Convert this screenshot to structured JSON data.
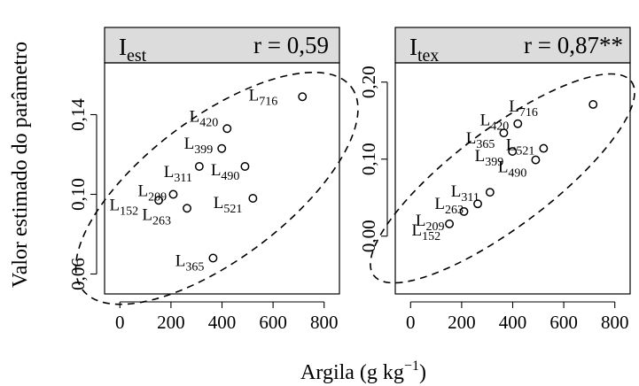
{
  "figure": {
    "ylabel": "Valor estimado do parâmetro",
    "xlabel_main": "Argila (g kg",
    "xlabel_sup": "−1",
    "xlabel_close": ")"
  },
  "chart_data": [
    {
      "type": "scatter",
      "strip_symbol": "I",
      "strip_subscript": "est",
      "strip_stat": "r = 0,59",
      "xlim": [
        -60,
        860
      ],
      "ylim": [
        0.05,
        0.166
      ],
      "xticks": [
        0,
        200,
        400,
        600,
        800
      ],
      "xtick_labels": [
        "0",
        "200",
        "400",
        "600",
        "800"
      ],
      "yticks": [
        0.06,
        0.1,
        0.14
      ],
      "ytick_labels": [
        "0,06",
        "0,10",
        "0,14"
      ],
      "points": [
        {
          "id": "L",
          "sub": "716",
          "x": 715,
          "y": 0.149
        },
        {
          "id": "L",
          "sub": "420",
          "x": 420,
          "y": 0.133
        },
        {
          "id": "L",
          "sub": "399",
          "x": 399,
          "y": 0.123
        },
        {
          "id": "L",
          "sub": "311",
          "x": 311,
          "y": 0.114
        },
        {
          "id": "L",
          "sub": "490",
          "x": 490,
          "y": 0.114
        },
        {
          "id": "L",
          "sub": "209",
          "x": 209,
          "y": 0.1
        },
        {
          "id": "L",
          "sub": "152",
          "x": 152,
          "y": 0.097
        },
        {
          "id": "L",
          "sub": "263",
          "x": 263,
          "y": 0.093
        },
        {
          "id": "L",
          "sub": "521",
          "x": 521,
          "y": 0.098
        },
        {
          "id": "L",
          "sub": "365",
          "x": 365,
          "y": 0.068
        }
      ],
      "confidence_ellipse": true
    },
    {
      "type": "scatter",
      "strip_symbol": "I",
      "strip_subscript": "tex",
      "strip_stat": "r = 0,87**",
      "xlim": [
        -60,
        860
      ],
      "ylim": [
        -0.075,
        0.225
      ],
      "xticks": [
        0,
        200,
        400,
        600,
        800
      ],
      "xtick_labels": [
        "0",
        "200",
        "400",
        "600",
        "800"
      ],
      "yticks": [
        0.0,
        0.1,
        0.2
      ],
      "ytick_labels": [
        "0,00",
        "0,10",
        "0,20"
      ],
      "points": [
        {
          "id": "L",
          "sub": "716",
          "x": 715,
          "y": 0.171
        },
        {
          "id": "L",
          "sub": "420",
          "x": 420,
          "y": 0.146
        },
        {
          "id": "L",
          "sub": "365",
          "x": 365,
          "y": 0.134
        },
        {
          "id": "L",
          "sub": "399",
          "x": 399,
          "y": 0.11
        },
        {
          "id": "L",
          "sub": "521",
          "x": 521,
          "y": 0.114
        },
        {
          "id": "L",
          "sub": "490",
          "x": 490,
          "y": 0.099
        },
        {
          "id": "L",
          "sub": "311",
          "x": 311,
          "y": 0.057
        },
        {
          "id": "L",
          "sub": "263",
          "x": 263,
          "y": 0.042
        },
        {
          "id": "L",
          "sub": "209",
          "x": 209,
          "y": 0.032
        },
        {
          "id": "L",
          "sub": "152",
          "x": 152,
          "y": 0.016
        }
      ],
      "confidence_ellipse": true
    }
  ]
}
